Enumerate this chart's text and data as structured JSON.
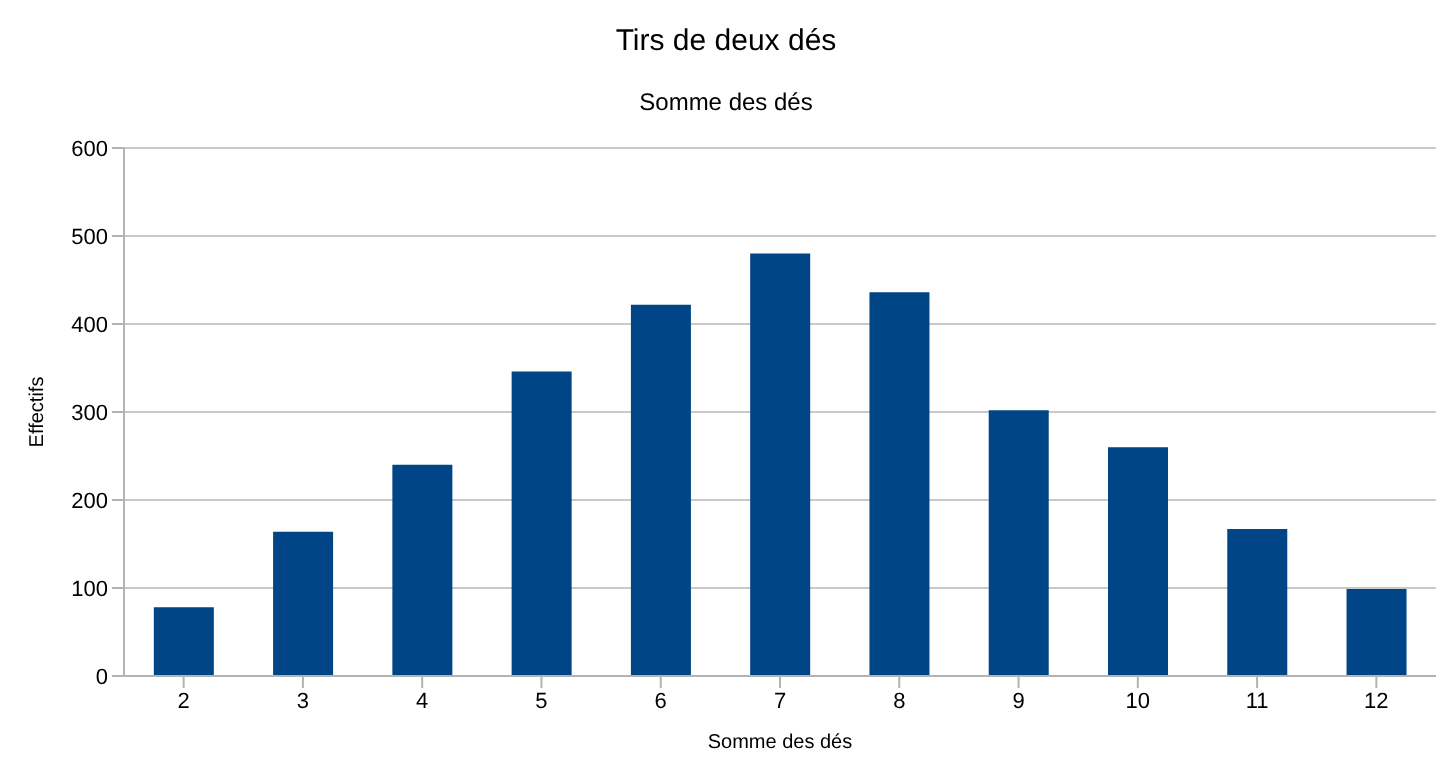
{
  "chart_data": {
    "type": "bar",
    "title": "Tirs de deux dés",
    "subtitle": "Somme des dés",
    "xlabel": "Somme des dés",
    "ylabel": "Effectifs",
    "categories": [
      "2",
      "3",
      "4",
      "5",
      "6",
      "7",
      "8",
      "9",
      "10",
      "11",
      "12"
    ],
    "values": [
      78,
      164,
      240,
      346,
      422,
      480,
      436,
      302,
      260,
      167,
      99
    ],
    "color": "#004586",
    "ylim": [
      0,
      600
    ],
    "yticks": [
      0,
      100,
      200,
      300,
      400,
      500,
      600
    ],
    "grid": "y",
    "legend": false
  }
}
